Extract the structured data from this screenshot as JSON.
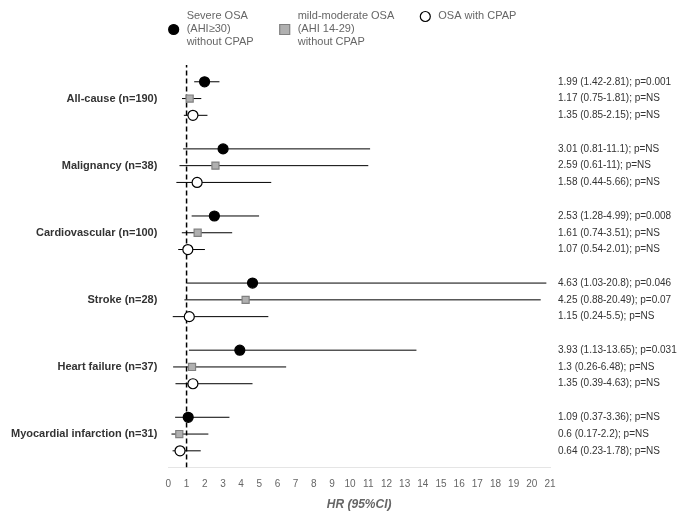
{
  "chart_data": {
    "type": "forest",
    "x_label": "HR (95%CI)",
    "categories": [
      "All-cause (n=190)",
      "Malignancy (n=38)",
      "Cardiovascular (n=100)",
      "Stroke (n=28)",
      "Heart failure (n=37)",
      "Myocardial infarction (n=31)"
    ],
    "series": [
      {
        "name": "Severe OSA\n(AHI≥30)\nwithout CPAP",
        "color": "#000000",
        "marker": "circle",
        "values": [
          1.99,
          3.01,
          2.53,
          4.63,
          3.93,
          1.09
        ],
        "ci_low": [
          1.42,
          0.81,
          1.28,
          1.03,
          1.13,
          0.37
        ],
        "ci_high": [
          2.81,
          11.1,
          4.99,
          20.8,
          13.65,
          3.36
        ],
        "annotations": [
          "1.99 (1.42-2.81); p=0.001",
          "3.01 (0.81-11.1); p=NS",
          "2.53 (1.28-4.99); p=0.008",
          "4.63 (1.03-20.8); p=0.046",
          "3.93 (1.13-13.65); p=0.031",
          "1.09 (0.37-3.36); p=NS"
        ]
      },
      {
        "name": "mild-moderate OSA\n(AHI 14-29)\nwithout CPAP",
        "color": "#b0b0b0",
        "marker": "square",
        "values": [
          1.17,
          2.59,
          1.61,
          4.25,
          1.3,
          0.6
        ],
        "ci_low": [
          0.75,
          0.61,
          0.74,
          0.88,
          0.26,
          0.17
        ],
        "ci_high": [
          1.81,
          11.0,
          3.51,
          20.49,
          6.48,
          2.2
        ],
        "annotations": [
          "1.17 (0.75-1.81); p=NS",
          "2.59 (0.61-11); p=NS",
          "1.61 (0.74-3.51); p=NS",
          "4.25 (0.88-20.49); p=0.07",
          "1.3 (0.26-6.48); p=NS",
          "0.6 (0.17-2.2); p=NS"
        ]
      },
      {
        "name": "OSA with CPAP",
        "color": "#000000",
        "marker": "open circle",
        "values": [
          1.35,
          1.58,
          1.07,
          1.15,
          1.35,
          0.64
        ],
        "ci_low": [
          0.85,
          0.44,
          0.54,
          0.24,
          0.39,
          0.23
        ],
        "ci_high": [
          2.15,
          5.66,
          2.01,
          5.5,
          4.63,
          1.78
        ],
        "annotations": [
          "1.35 (0.85-2.15); p=NS",
          "1.58 (0.44-5.66); p=NS",
          "1.07 (0.54-2.01); p=NS",
          "1.15 (0.24-5.5); p=NS",
          "1.35 (0.39-4.63); p=NS",
          "0.64 (0.23-1.78); p=NS"
        ]
      }
    ],
    "reference_line": 1,
    "xlim": [
      0,
      21
    ],
    "xticks": [
      0,
      1,
      2,
      3,
      4,
      5,
      6,
      7,
      8,
      9,
      10,
      11,
      12,
      13,
      14,
      15,
      16,
      17,
      18,
      19,
      20,
      21
    ],
    "grid": false,
    "legend": "top"
  }
}
